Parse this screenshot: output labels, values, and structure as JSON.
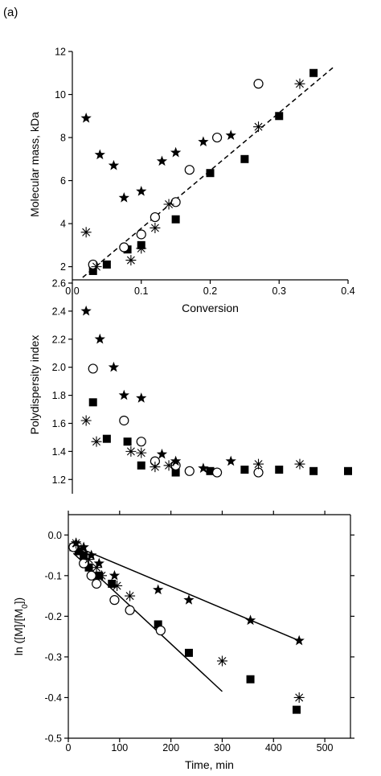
{
  "panel_label": "(a)",
  "chart_data": [
    {
      "type": "scatter",
      "title": "",
      "xlabel": "Conversion",
      "ylabel": "Molecular mass, kDa",
      "xlim": [
        0,
        0.4
      ],
      "ylim": [
        1.5,
        12
      ],
      "xticks": [
        "0.0",
        "0.1",
        "0.2",
        "0.3",
        "0.4"
      ],
      "yticks": [
        "2",
        "4",
        "6",
        "8",
        "10",
        "12"
      ],
      "series": [
        {
          "marker": "filled-square",
          "points": [
            [
              0.03,
              1.8
            ],
            [
              0.05,
              2.1
            ],
            [
              0.08,
              2.8
            ],
            [
              0.1,
              3.0
            ],
            [
              0.15,
              4.2
            ],
            [
              0.2,
              6.35
            ],
            [
              0.25,
              7.0
            ],
            [
              0.3,
              9.0
            ],
            [
              0.35,
              11.0
            ]
          ]
        },
        {
          "marker": "open-circle",
          "points": [
            [
              0.03,
              2.1
            ],
            [
              0.075,
              2.9
            ],
            [
              0.1,
              3.5
            ],
            [
              0.12,
              4.3
            ],
            [
              0.15,
              5.0
            ],
            [
              0.17,
              6.5
            ],
            [
              0.21,
              8.0
            ],
            [
              0.27,
              10.5
            ]
          ]
        },
        {
          "marker": "filled-star",
          "points": [
            [
              0.02,
              8.9
            ],
            [
              0.04,
              7.2
            ],
            [
              0.06,
              6.7
            ],
            [
              0.075,
              5.2
            ],
            [
              0.1,
              5.5
            ],
            [
              0.13,
              6.9
            ],
            [
              0.15,
              7.3
            ],
            [
              0.19,
              7.8
            ],
            [
              0.23,
              8.1
            ]
          ]
        },
        {
          "marker": "asterisk",
          "points": [
            [
              0.02,
              3.6
            ],
            [
              0.035,
              2.0
            ],
            [
              0.085,
              2.3
            ],
            [
              0.1,
              2.85
            ],
            [
              0.12,
              3.8
            ],
            [
              0.14,
              4.9
            ],
            [
              0.27,
              8.5
            ],
            [
              0.33,
              10.5
            ]
          ]
        }
      ],
      "fit_lines": [
        {
          "style": "dashed",
          "points": [
            [
              0.015,
              1.5
            ],
            [
              0.38,
              11.3
            ]
          ]
        }
      ]
    },
    {
      "type": "scatter",
      "title": "",
      "xlabel": "",
      "ylabel": "Polydispersity index",
      "xlim": [
        0,
        0.4
      ],
      "ylim": [
        1.15,
        2.6
      ],
      "yticks": [
        "1.2",
        "1.4",
        "1.6",
        "1.8",
        "2.0",
        "2.2",
        "2.4",
        "2.6"
      ],
      "series": [
        {
          "marker": "filled-square",
          "points": [
            [
              0.03,
              1.75
            ],
            [
              0.05,
              1.49
            ],
            [
              0.08,
              1.47
            ],
            [
              0.1,
              1.3
            ],
            [
              0.15,
              1.25
            ],
            [
              0.2,
              1.26
            ],
            [
              0.25,
              1.27
            ],
            [
              0.3,
              1.27
            ],
            [
              0.35,
              1.26
            ],
            [
              0.4,
              1.26
            ]
          ]
        },
        {
          "marker": "open-circle",
          "points": [
            [
              0.03,
              1.99
            ],
            [
              0.075,
              1.62
            ],
            [
              0.1,
              1.47
            ],
            [
              0.12,
              1.33
            ],
            [
              0.15,
              1.3
            ],
            [
              0.17,
              1.26
            ],
            [
              0.21,
              1.25
            ],
            [
              0.27,
              1.25
            ]
          ]
        },
        {
          "marker": "filled-star",
          "points": [
            [
              0.02,
              2.4
            ],
            [
              0.04,
              2.2
            ],
            [
              0.06,
              2.0
            ],
            [
              0.075,
              1.8
            ],
            [
              0.1,
              1.78
            ],
            [
              0.13,
              1.38
            ],
            [
              0.15,
              1.33
            ],
            [
              0.19,
              1.28
            ],
            [
              0.23,
              1.33
            ]
          ]
        },
        {
          "marker": "asterisk",
          "points": [
            [
              0.02,
              1.62
            ],
            [
              0.035,
              1.47
            ],
            [
              0.085,
              1.4
            ],
            [
              0.1,
              1.39
            ],
            [
              0.12,
              1.29
            ],
            [
              0.14,
              1.3
            ],
            [
              0.27,
              1.31
            ],
            [
              0.33,
              1.31
            ]
          ]
        }
      ]
    },
    {
      "type": "scatter",
      "title": "",
      "xlabel": "Time, min",
      "ylabel": "ln ([M]/[M0])",
      "xlim": [
        0,
        550
      ],
      "ylim": [
        -0.5,
        0.05
      ],
      "xticks": [
        "0",
        "100",
        "200",
        "300",
        "400",
        "500"
      ],
      "yticks": [
        "-0.5",
        "-0.4",
        "-0.3",
        "-0.2",
        "-0.1",
        "0.0"
      ],
      "series": [
        {
          "marker": "filled-square",
          "points": [
            [
              10,
              -0.03
            ],
            [
              20,
              -0.04
            ],
            [
              30,
              -0.05
            ],
            [
              40,
              -0.08
            ],
            [
              60,
              -0.1
            ],
            [
              85,
              -0.12
            ],
            [
              175,
              -0.22
            ],
            [
              235,
              -0.29
            ],
            [
              355,
              -0.355
            ],
            [
              445,
              -0.43
            ]
          ]
        },
        {
          "marker": "open-circle",
          "points": [
            [
              10,
              -0.03
            ],
            [
              30,
              -0.07
            ],
            [
              45,
              -0.1
            ],
            [
              55,
              -0.12
            ],
            [
              90,
              -0.16
            ],
            [
              120,
              -0.185
            ],
            [
              180,
              -0.235
            ]
          ]
        },
        {
          "marker": "filled-star",
          "points": [
            [
              15,
              -0.02
            ],
            [
              30,
              -0.03
            ],
            [
              45,
              -0.05
            ],
            [
              60,
              -0.07
            ],
            [
              90,
              -0.1
            ],
            [
              175,
              -0.135
            ],
            [
              235,
              -0.16
            ],
            [
              355,
              -0.21
            ],
            [
              450,
              -0.26
            ]
          ]
        },
        {
          "marker": "asterisk",
          "points": [
            [
              15,
              -0.02
            ],
            [
              25,
              -0.035
            ],
            [
              40,
              -0.06
            ],
            [
              55,
              -0.08
            ],
            [
              65,
              -0.1
            ],
            [
              95,
              -0.125
            ],
            [
              120,
              -0.15
            ],
            [
              300,
              -0.31
            ],
            [
              450,
              -0.4
            ]
          ]
        }
      ],
      "fit_lines": [
        {
          "style": "solid",
          "points": [
            [
              10,
              -0.026
            ],
            [
              450,
              -0.26
            ]
          ]
        },
        {
          "style": "solid",
          "points": [
            [
              10,
              -0.045
            ],
            [
              300,
              -0.385
            ]
          ]
        }
      ]
    }
  ]
}
